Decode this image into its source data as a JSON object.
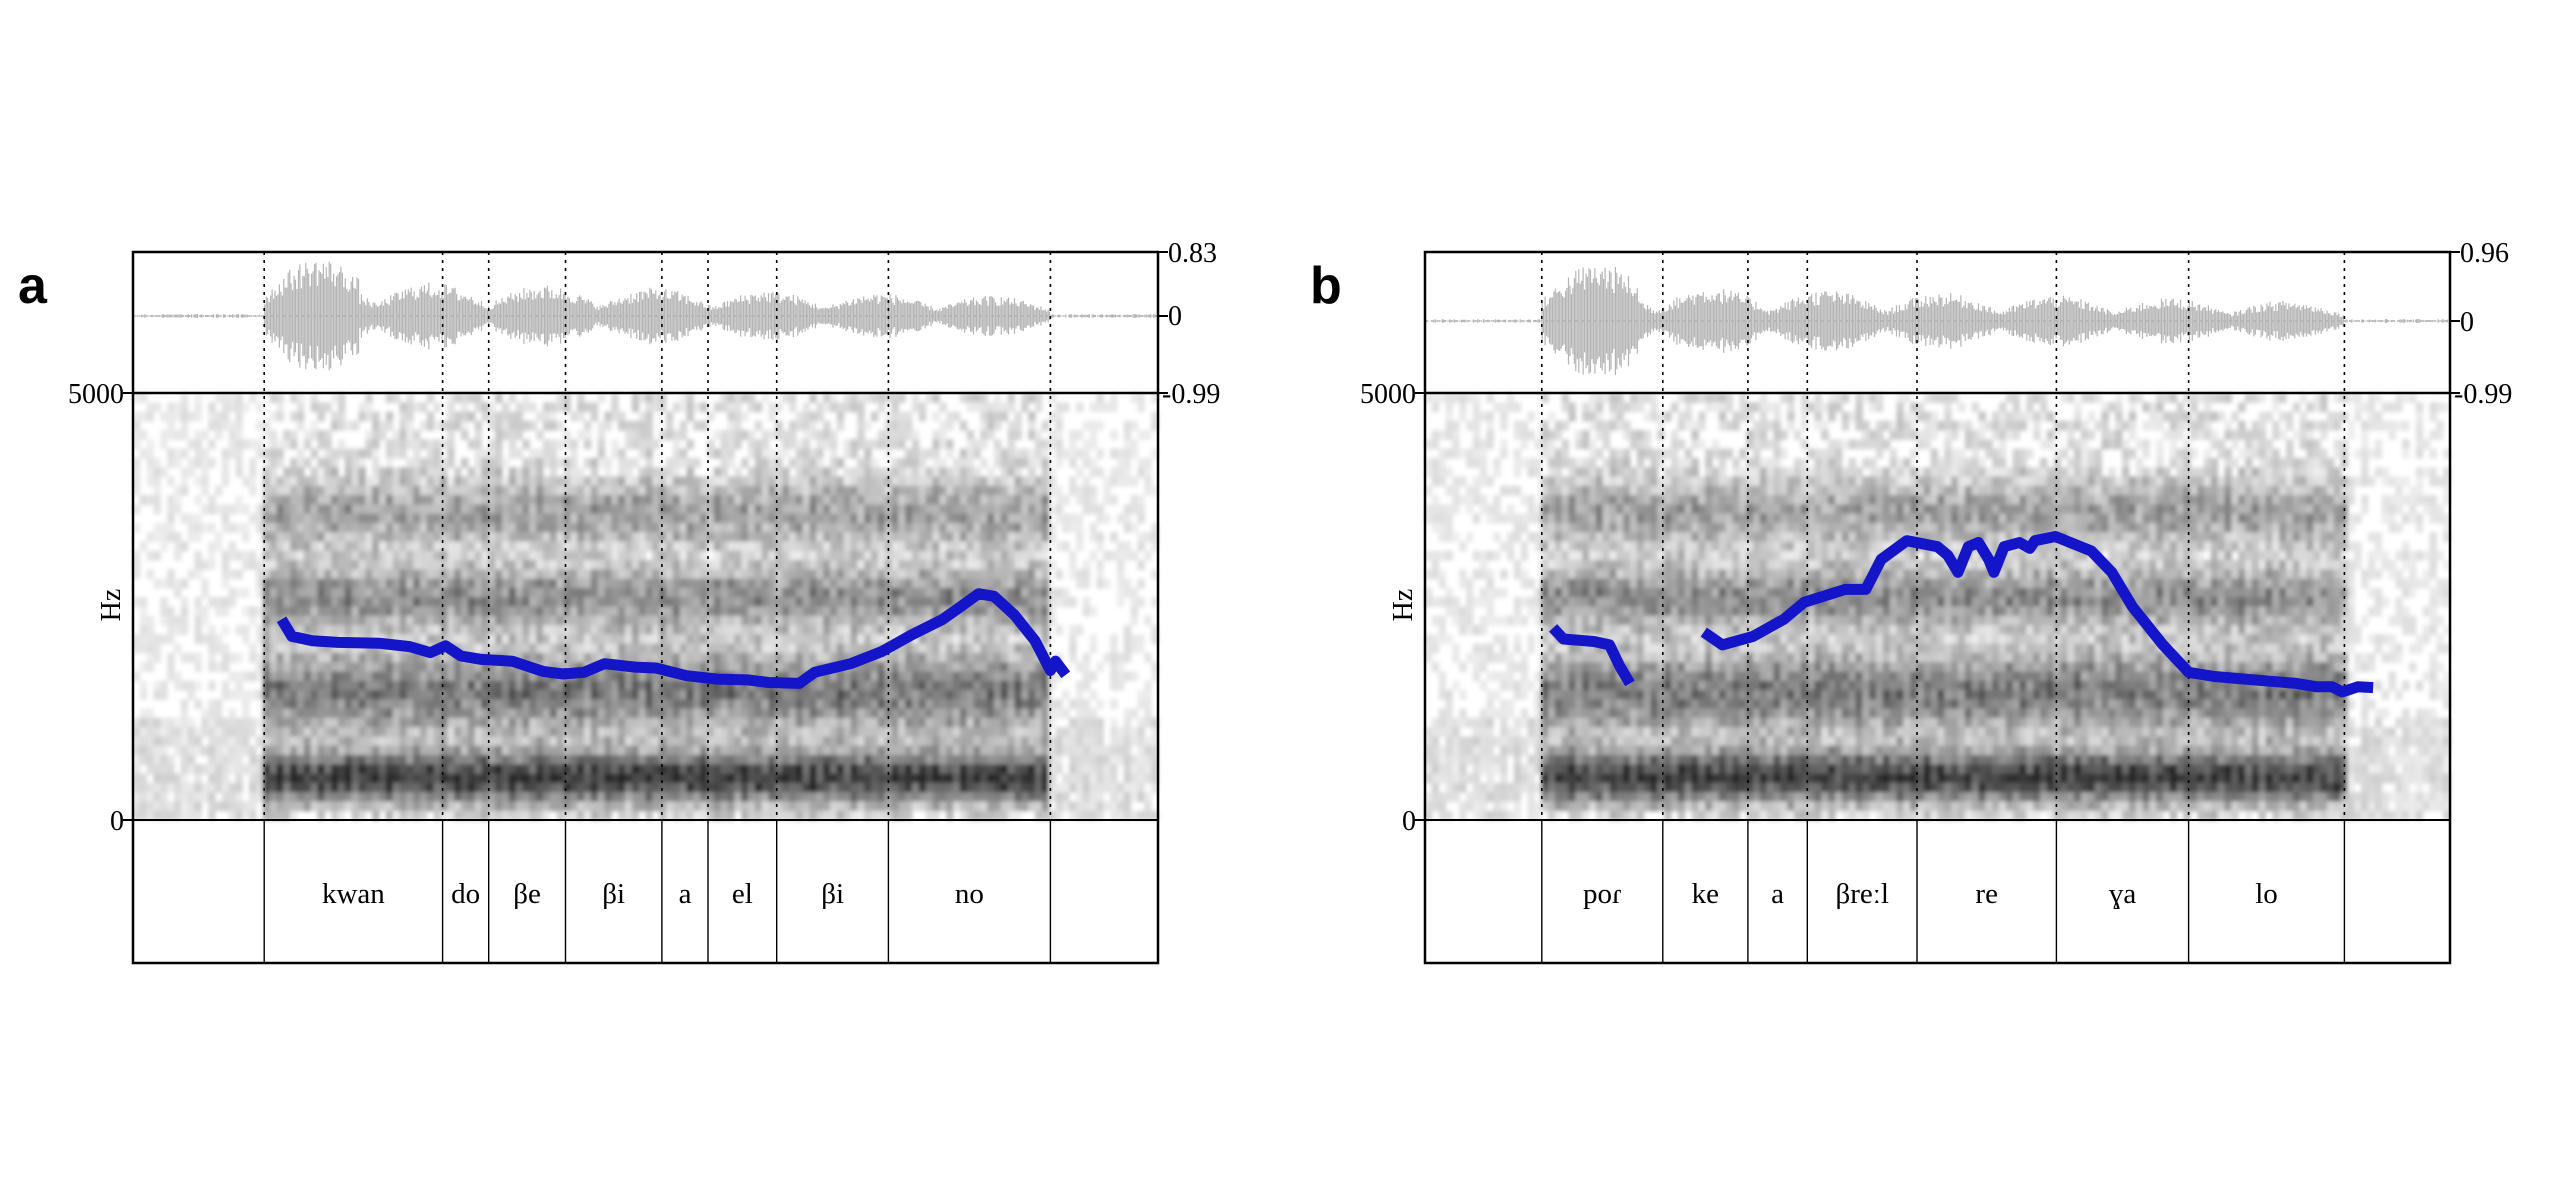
{
  "chart_data": [
    {
      "type": "line",
      "panel_label": "a",
      "ylabel": "Hz",
      "ylim": [
        0,
        5000
      ],
      "yticks": [
        "5000",
        "0"
      ],
      "waveform": {
        "max_label": "0.83",
        "zero_label": "0",
        "min_label": "-0.99"
      },
      "segment_boundaries": [
        0.128,
        0.302,
        0.347,
        0.422,
        0.516,
        0.561,
        0.628,
        0.737,
        0.895
      ],
      "syllables": [
        {
          "text": "kwan",
          "start": 0.128,
          "end": 0.302
        },
        {
          "text": "do",
          "start": 0.302,
          "end": 0.347
        },
        {
          "text": "βe",
          "start": 0.347,
          "end": 0.422
        },
        {
          "text": "βi",
          "start": 0.422,
          "end": 0.516
        },
        {
          "text": "a",
          "start": 0.516,
          "end": 0.561
        },
        {
          "text": "el",
          "start": 0.561,
          "end": 0.628
        },
        {
          "text": "βi",
          "start": 0.628,
          "end": 0.737
        },
        {
          "text": "no",
          "start": 0.737,
          "end": 0.895
        }
      ],
      "pitch_contour": [
        [
          0.145,
          2350
        ],
        [
          0.155,
          2150
        ],
        [
          0.175,
          2100
        ],
        [
          0.2,
          2080
        ],
        [
          0.24,
          2070
        ],
        [
          0.27,
          2030
        ],
        [
          0.29,
          1960
        ],
        [
          0.305,
          2040
        ],
        [
          0.32,
          1920
        ],
        [
          0.34,
          1880
        ],
        [
          0.37,
          1860
        ],
        [
          0.4,
          1740
        ],
        [
          0.42,
          1710
        ],
        [
          0.44,
          1730
        ],
        [
          0.46,
          1830
        ],
        [
          0.49,
          1790
        ],
        [
          0.51,
          1780
        ],
        [
          0.54,
          1690
        ],
        [
          0.57,
          1650
        ],
        [
          0.6,
          1640
        ],
        [
          0.62,
          1610
        ],
        [
          0.65,
          1600
        ],
        [
          0.665,
          1730
        ],
        [
          0.7,
          1830
        ],
        [
          0.73,
          1970
        ],
        [
          0.76,
          2170
        ],
        [
          0.79,
          2350
        ],
        [
          0.81,
          2520
        ],
        [
          0.825,
          2650
        ],
        [
          0.84,
          2620
        ],
        [
          0.86,
          2400
        ],
        [
          0.88,
          2100
        ],
        [
          0.895,
          1750
        ],
        [
          0.9,
          1860
        ],
        [
          0.91,
          1700
        ]
      ]
    },
    {
      "type": "line",
      "panel_label": "b",
      "ylabel": "Hz",
      "ylim": [
        0,
        5000
      ],
      "yticks": [
        "5000",
        "0"
      ],
      "waveform": {
        "max_label": "0.96",
        "zero_label": "0",
        "min_label": "-0.99"
      },
      "segment_boundaries": [
        0.114,
        0.232,
        0.315,
        0.373,
        0.48,
        0.616,
        0.745,
        0.897
      ],
      "syllables": [
        {
          "text": "poɾ",
          "start": 0.114,
          "end": 0.232
        },
        {
          "text": "ke",
          "start": 0.232,
          "end": 0.315
        },
        {
          "text": "a",
          "start": 0.315,
          "end": 0.373
        },
        {
          "text": "βreːl",
          "start": 0.373,
          "end": 0.48
        },
        {
          "text": "re",
          "start": 0.48,
          "end": 0.616
        },
        {
          "text": "ɣa",
          "start": 0.616,
          "end": 0.745
        },
        {
          "text": "lo",
          "start": 0.745,
          "end": 0.897
        }
      ],
      "pitch_contour_segments": [
        [
          [
            0.125,
            2250
          ],
          [
            0.135,
            2120
          ],
          [
            0.165,
            2090
          ],
          [
            0.18,
            2050
          ],
          [
            0.19,
            1800
          ],
          [
            0.2,
            1600
          ]
        ],
        [
          [
            0.272,
            2200
          ],
          [
            0.29,
            2050
          ],
          [
            0.32,
            2150
          ],
          [
            0.35,
            2350
          ],
          [
            0.37,
            2550
          ],
          [
            0.41,
            2700
          ],
          [
            0.43,
            2700
          ],
          [
            0.445,
            3050
          ],
          [
            0.47,
            3270
          ],
          [
            0.5,
            3200
          ],
          [
            0.51,
            3100
          ],
          [
            0.52,
            2900
          ],
          [
            0.53,
            3200
          ],
          [
            0.54,
            3250
          ],
          [
            0.55,
            3050
          ],
          [
            0.555,
            2900
          ],
          [
            0.565,
            3200
          ],
          [
            0.58,
            3250
          ],
          [
            0.59,
            3180
          ],
          [
            0.595,
            3270
          ],
          [
            0.615,
            3320
          ],
          [
            0.65,
            3150
          ],
          [
            0.67,
            2900
          ],
          [
            0.69,
            2500
          ],
          [
            0.72,
            2050
          ],
          [
            0.745,
            1730
          ],
          [
            0.77,
            1680
          ],
          [
            0.8,
            1650
          ],
          [
            0.83,
            1620
          ],
          [
            0.85,
            1600
          ],
          [
            0.87,
            1560
          ],
          [
            0.885,
            1560
          ],
          [
            0.895,
            1500
          ],
          [
            0.91,
            1560
          ],
          [
            0.925,
            1550
          ]
        ]
      ]
    }
  ],
  "colors": {
    "pitch": "#1414c8",
    "waveform": "#b4b4b4",
    "frame": "#000000"
  }
}
